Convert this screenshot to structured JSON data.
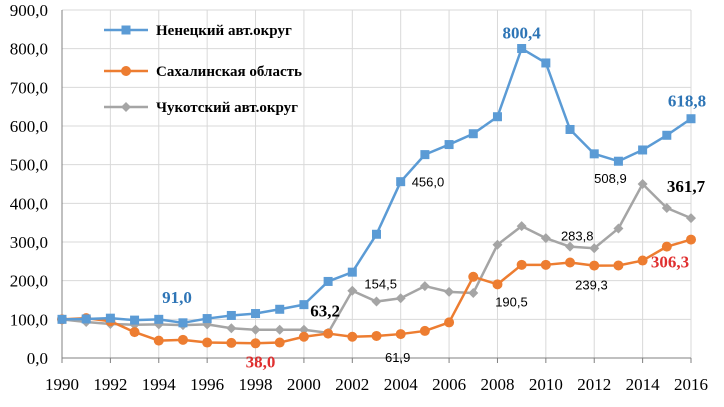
{
  "chart_data": {
    "type": "line",
    "title": "",
    "xlabel": "",
    "ylabel": "",
    "x": [
      1990,
      1991,
      1992,
      1993,
      1994,
      1995,
      1996,
      1997,
      1998,
      1999,
      2000,
      2001,
      2002,
      2003,
      2004,
      2005,
      2006,
      2007,
      2008,
      2009,
      2010,
      2011,
      2012,
      2013,
      2014,
      2015,
      2016
    ],
    "x_tick_labels": [
      "1990",
      "1992",
      "1994",
      "1996",
      "1998",
      "2000",
      "2002",
      "2004",
      "2006",
      "2008",
      "2010",
      "2012",
      "2014",
      "2016"
    ],
    "y_tick_labels": [
      "0,0",
      "100,0",
      "200,0",
      "300,0",
      "400,0",
      "500,0",
      "600,0",
      "700,0",
      "800,0",
      "900,0"
    ],
    "xlim": [
      1990,
      2016
    ],
    "ylim": [
      0,
      900
    ],
    "grid": true,
    "legend_position": "top-left",
    "series": [
      {
        "name": "Ненецкий авт.округ",
        "color": "#5b9bd5",
        "marker": "square",
        "values": [
          100,
          101,
          103,
          98,
          100,
          91,
          102,
          110,
          115,
          126,
          138,
          198,
          222,
          320,
          456,
          526,
          552,
          580,
          624,
          800.4,
          763,
          591,
          528,
          508.9,
          538,
          576,
          618.8
        ]
      },
      {
        "name": "Сахалинская область",
        "color": "#ed7d31",
        "marker": "circle",
        "values": [
          100,
          103,
          95,
          67,
          45,
          47,
          40,
          39,
          38,
          40,
          55,
          63.2,
          55,
          57,
          61.9,
          70,
          92,
          210,
          190.5,
          241,
          241,
          247,
          239,
          239.3,
          252,
          288,
          306.3
        ]
      },
      {
        "name": "Чукотский авт.округ",
        "color": "#a5a5a5",
        "marker": "diamond",
        "values": [
          100,
          93,
          88,
          86,
          87,
          85,
          87,
          77,
          73,
          73,
          73,
          65,
          174,
          146,
          154.5,
          186,
          171,
          168,
          293,
          341,
          310,
          288,
          283.8,
          335,
          450,
          388,
          361.7
        ]
      }
    ],
    "annotations": [
      {
        "text": "800,4",
        "year": 2009,
        "value": 800.4,
        "color": "#2e75b6",
        "bold": true
      },
      {
        "text": "618,8",
        "year": 2016,
        "value": 618.8,
        "color": "#2e75b6",
        "bold": true
      },
      {
        "text": "91,0",
        "year": 1995,
        "value": 91,
        "color": "#2e75b6",
        "bold": true
      },
      {
        "text": "456,0",
        "year": 2004,
        "value": 456,
        "color": "#000000",
        "bold": false
      },
      {
        "text": "508,9",
        "year": 2013,
        "value": 508.9,
        "color": "#000000",
        "bold": false
      },
      {
        "text": "361,7",
        "year": 2016,
        "value": 361.7,
        "color": "#000000",
        "bold": true
      },
      {
        "text": "283,8",
        "year": 2012,
        "value": 283.8,
        "color": "#000000",
        "bold": false
      },
      {
        "text": "154,5",
        "year": 2004,
        "value": 154.5,
        "color": "#000000",
        "bold": false
      },
      {
        "text": "63,2",
        "year": 2001,
        "value": 63.2,
        "color": "#000000",
        "bold": true
      },
      {
        "text": "61,9",
        "year": 2004,
        "value": 61.9,
        "color": "#000000",
        "bold": false
      },
      {
        "text": "38,0",
        "year": 1998,
        "value": 38,
        "color": "#e03030",
        "bold": true
      },
      {
        "text": "190,5",
        "year": 2008,
        "value": 190.5,
        "color": "#000000",
        "bold": false
      },
      {
        "text": "239,3",
        "year": 2013,
        "value": 239.3,
        "color": "#000000",
        "bold": false
      },
      {
        "text": "306,3",
        "year": 2016,
        "value": 306.3,
        "color": "#e03030",
        "bold": true
      }
    ]
  }
}
